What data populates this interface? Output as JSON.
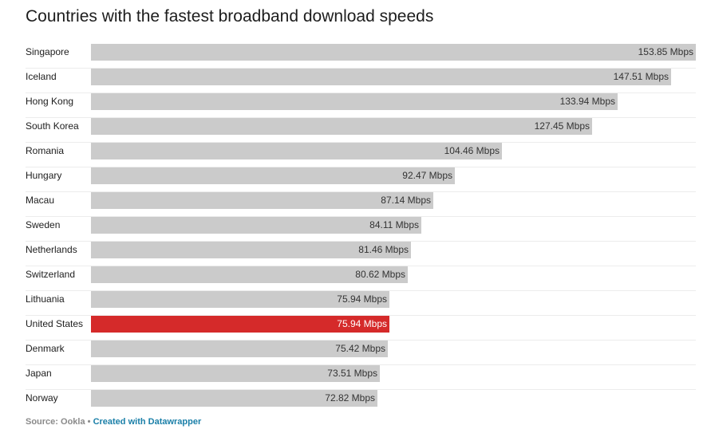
{
  "chart_data": {
    "type": "bar",
    "orientation": "horizontal",
    "title": "Countries with the fastest broadband download speeds",
    "unit": "Mbps",
    "categories": [
      "Singapore",
      "Iceland",
      "Hong Kong",
      "South Korea",
      "Romania",
      "Hungary",
      "Macau",
      "Sweden",
      "Netherlands",
      "Switzerland",
      "Lithuania",
      "United States",
      "Denmark",
      "Japan",
      "Norway"
    ],
    "values": [
      153.85,
      147.51,
      133.94,
      127.45,
      104.46,
      92.47,
      87.14,
      84.11,
      81.46,
      80.62,
      75.94,
      75.94,
      75.42,
      73.51,
      72.82
    ],
    "value_labels": [
      "153.85 Mbps",
      "147.51 Mbps",
      "133.94 Mbps",
      "127.45 Mbps",
      "104.46 Mbps",
      "92.47 Mbps",
      "87.14 Mbps",
      "84.11 Mbps",
      "81.46 Mbps",
      "80.62 Mbps",
      "75.94 Mbps",
      "75.94 Mbps",
      "75.42 Mbps",
      "73.51 Mbps",
      "72.82 Mbps"
    ],
    "highlighted": [
      "United States"
    ],
    "xlim": [
      0,
      153.85
    ],
    "grid": false,
    "legend": "none"
  },
  "colors": {
    "bar": "#cbcbcb",
    "highlight": "#d52a2a",
    "credit_link": "#1a7fa8",
    "source_text": "#8a8a8a"
  },
  "footer": {
    "source": "Source: Ookla",
    "separator": "•",
    "credit": "Created with Datawrapper"
  }
}
